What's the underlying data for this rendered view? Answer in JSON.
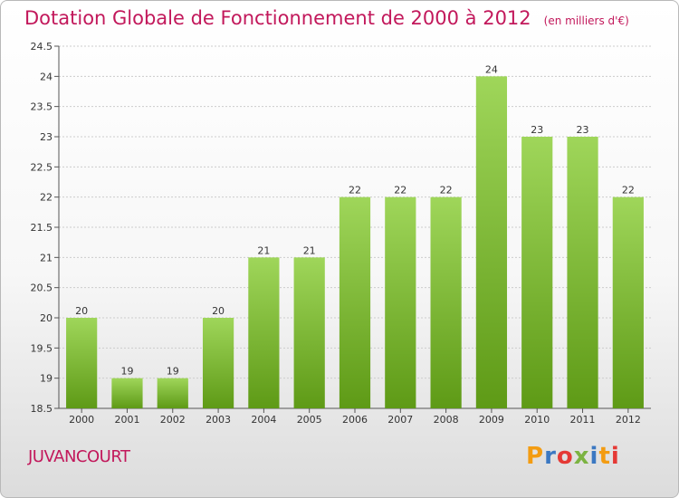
{
  "header": {
    "title": "Dotation Globale de Fonctionnement de 2000 à 2012",
    "unit": "(en milliers d'€)"
  },
  "footer": {
    "commune": "JUVANCOURT",
    "brand": "Proxiti",
    "brand_colors": [
      "#f39c12",
      "#3b78c2",
      "#e53935",
      "#7cb342",
      "#3b78c2",
      "#f39c12",
      "#e53935"
    ]
  },
  "colors": {
    "title": "#c2185b",
    "bar_top": "#9fd65a",
    "bar_bottom": "#5e9a16",
    "grid": "#cccccc"
  },
  "chart_data": {
    "type": "bar",
    "categories": [
      "2000",
      "2001",
      "2002",
      "2003",
      "2004",
      "2005",
      "2006",
      "2007",
      "2008",
      "2009",
      "2010",
      "2011",
      "2012"
    ],
    "values": [
      20,
      19,
      19,
      20,
      21,
      21,
      22,
      22,
      22,
      24,
      23,
      23,
      22
    ],
    "data_labels": [
      "20",
      "19",
      "19",
      "20",
      "21",
      "21",
      "22",
      "22",
      "22",
      "24",
      "23",
      "23",
      "22"
    ],
    "ylim": [
      18.5,
      24.5
    ],
    "yticks": [
      "18.5",
      "19",
      "19.5",
      "20",
      "20.5",
      "21",
      "21.5",
      "22",
      "22.5",
      "23",
      "23.5",
      "24",
      "24.5"
    ],
    "grid": "horizontal",
    "title": "Dotation Globale de Fonctionnement de 2000 à 2012",
    "xlabel": "",
    "ylabel": ""
  }
}
